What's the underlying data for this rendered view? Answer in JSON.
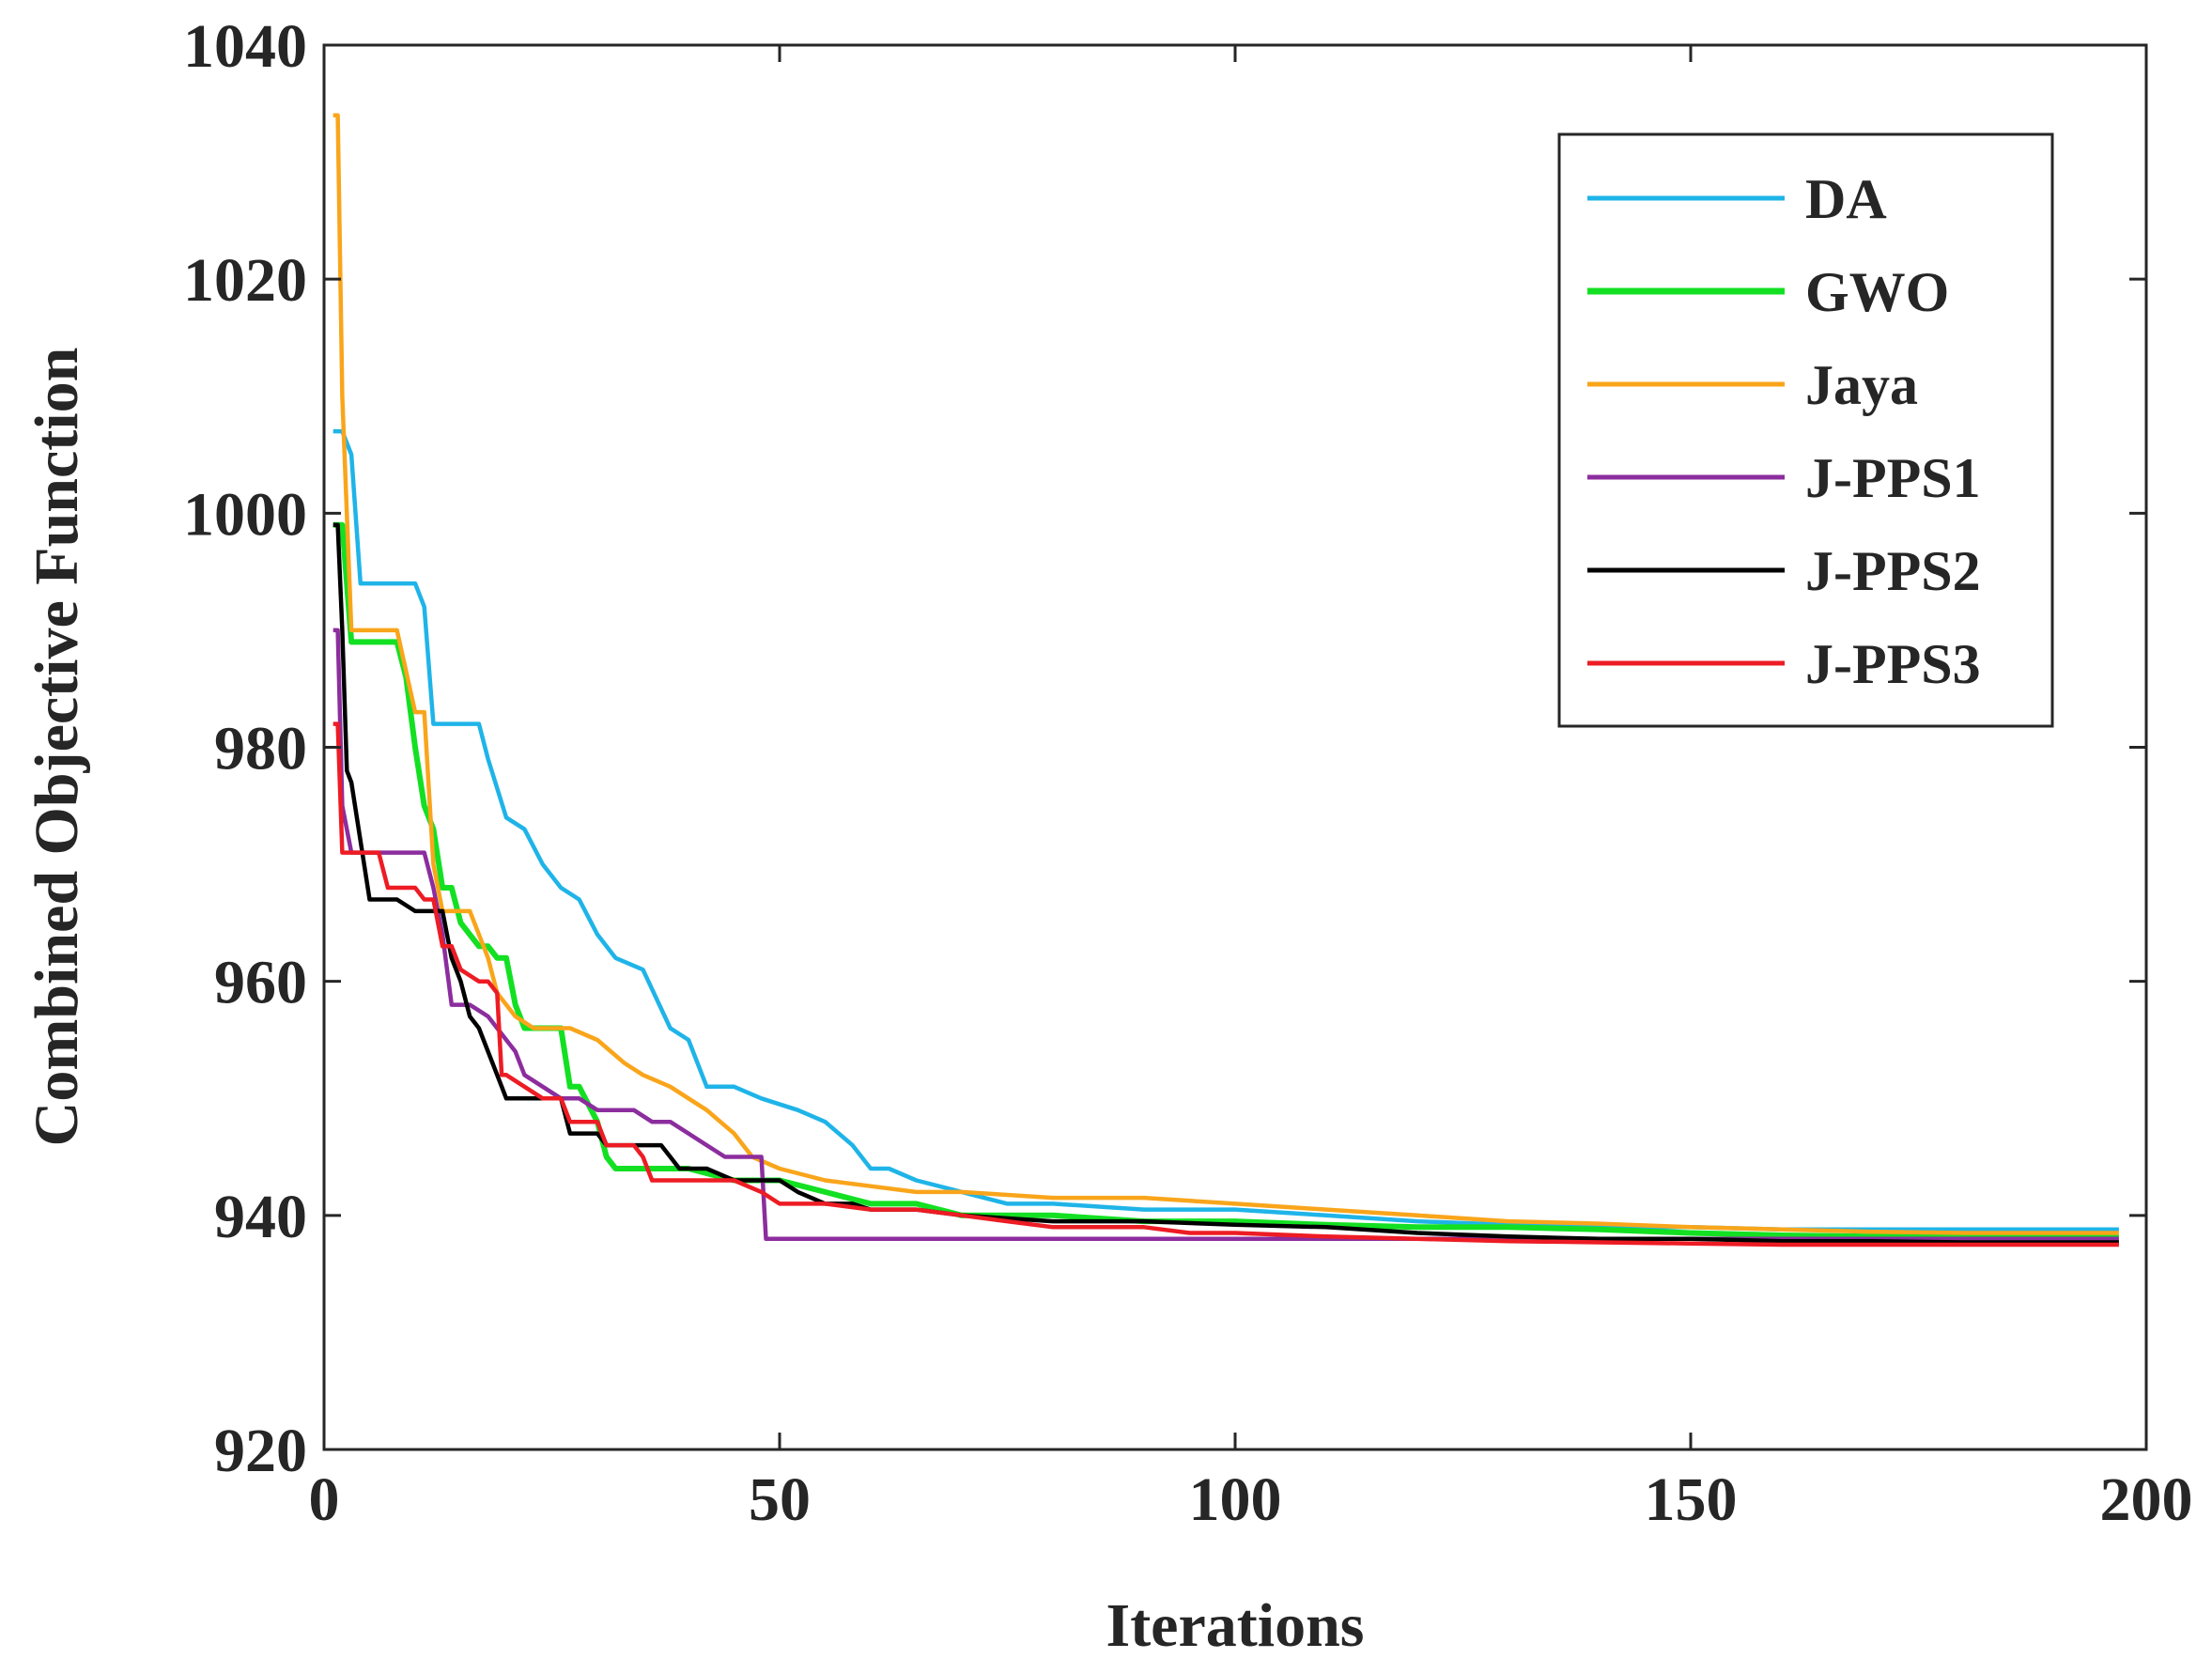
{
  "chart_data": {
    "type": "line",
    "title": "",
    "xlabel": "Iterations",
    "ylabel": "Combined Objective Function",
    "xlim": [
      0,
      200
    ],
    "ylim": [
      920,
      1040
    ],
    "xticks": [
      0,
      50,
      100,
      150,
      200
    ],
    "yticks": [
      920,
      940,
      960,
      980,
      1000,
      1020,
      1040
    ],
    "xtick_labels": [
      "0",
      "50",
      "100",
      "150",
      "200"
    ],
    "ytick_labels": [
      "920",
      "940",
      "960",
      "980",
      "1000",
      "1020",
      "1040"
    ],
    "grid": false,
    "legend_position": "top-right",
    "series": [
      {
        "name": "DA",
        "color": "#1fb4e8",
        "x": [
          1,
          2,
          3,
          4,
          6,
          10,
          11,
          12,
          13,
          17,
          18,
          20,
          22,
          24,
          26,
          28,
          30,
          32,
          35,
          38,
          40,
          42,
          45,
          48,
          52,
          55,
          58,
          60,
          62,
          65,
          70,
          75,
          80,
          90,
          100,
          110,
          120,
          130,
          140,
          150,
          160,
          170,
          180,
          190,
          197
        ],
        "y": [
          1007,
          1007,
          1005,
          994,
          994,
          994,
          992,
          982,
          982,
          982,
          979,
          974,
          973,
          970,
          968,
          967,
          964,
          962,
          961,
          956,
          955,
          951,
          951,
          950,
          949,
          948,
          946,
          944,
          944,
          943,
          942,
          941,
          941,
          940.5,
          940.5,
          940,
          939.5,
          939.2,
          939,
          939,
          938.8,
          938.8,
          938.8,
          938.8,
          938.8
        ]
      },
      {
        "name": "GWO",
        "color": "#13e022",
        "x": [
          1,
          2,
          3,
          5,
          8,
          9,
          10,
          11,
          12,
          13,
          14,
          15,
          17,
          18,
          19,
          20,
          21,
          22,
          24,
          26,
          27,
          28,
          30,
          31,
          32,
          33,
          35,
          40,
          45,
          50,
          55,
          60,
          65,
          70,
          80,
          90,
          100,
          110,
          120,
          130,
          140,
          150,
          160,
          170,
          180,
          190,
          197
        ],
        "y": [
          999,
          999,
          989,
          989,
          989,
          986,
          980,
          975,
          973,
          968,
          968,
          965,
          963,
          963,
          962,
          962,
          958,
          956,
          956,
          956,
          951,
          951,
          948,
          945,
          944,
          944,
          944,
          944,
          943,
          943,
          942,
          941,
          941,
          940,
          940,
          939.5,
          939.5,
          939.2,
          939,
          939,
          938.8,
          938.5,
          938.3,
          938.2,
          938.2,
          938.2,
          938.2
        ]
      },
      {
        "name": "Jaya",
        "color": "#f9a51b",
        "x": [
          1,
          1.5,
          2,
          3,
          4,
          5,
          7,
          8,
          10,
          11,
          12,
          13,
          16,
          17,
          18,
          19,
          20,
          21,
          23,
          25,
          27,
          30,
          33,
          35,
          38,
          40,
          42,
          45,
          47,
          50,
          55,
          60,
          65,
          70,
          80,
          90,
          100,
          110,
          120,
          130,
          140,
          150,
          160,
          170,
          180,
          190,
          197
        ],
        "y": [
          1034,
          1034,
          1010,
          990,
          990,
          990,
          990,
          990,
          983,
          983,
          970,
          966,
          966,
          964,
          962,
          959,
          958,
          957,
          956,
          956,
          956,
          955,
          953,
          952,
          951,
          950,
          949,
          947,
          945,
          944,
          943,
          942.5,
          942,
          942,
          941.5,
          941.5,
          941,
          940.5,
          940,
          939.5,
          939.3,
          939,
          938.8,
          938.6,
          938.5,
          938.5,
          938.5
        ]
      },
      {
        "name": "J-PPS1",
        "color": "#8c2d9e",
        "x": [
          1,
          1.5,
          2,
          3,
          5,
          7,
          8,
          10,
          11,
          12,
          13,
          14,
          16,
          18,
          20,
          21,
          22,
          24,
          26,
          28,
          30,
          32,
          34,
          36,
          38,
          40,
          42,
          44,
          46,
          48,
          48.5,
          50,
          60,
          70,
          80,
          90,
          100,
          120,
          140,
          160,
          180,
          197
        ],
        "y": [
          990,
          990,
          975,
          971,
          971,
          971,
          971,
          971,
          971,
          968,
          964,
          958,
          958,
          957,
          955,
          954,
          952,
          951,
          950,
          950,
          949,
          949,
          949,
          948,
          948,
          947,
          946,
          945,
          945,
          945,
          938,
          938,
          938,
          938,
          938,
          938,
          938,
          938,
          938,
          938,
          938,
          938
        ]
      },
      {
        "name": "J-PPS2",
        "color": "#000000",
        "x": [
          1,
          1.5,
          2,
          2.5,
          3,
          4,
          5,
          6,
          8,
          10,
          12,
          13,
          14,
          15,
          16,
          17,
          18,
          19,
          20,
          22,
          24,
          26,
          27,
          30,
          31,
          35,
          37,
          38,
          39,
          42,
          45,
          47,
          50,
          52,
          55,
          58,
          60,
          65,
          70,
          80,
          90,
          100,
          110,
          120,
          130,
          140,
          150,
          160,
          170,
          180,
          190,
          197
        ],
        "y": [
          999,
          999,
          990,
          978,
          977,
          972,
          967,
          967,
          967,
          966,
          966,
          966,
          962,
          960,
          957,
          956,
          954,
          952,
          950,
          950,
          950,
          950,
          947,
          947,
          946,
          946,
          946,
          945,
          944,
          944,
          943,
          943,
          943,
          942,
          941,
          941,
          940.5,
          940.5,
          940,
          939.5,
          939.5,
          939.2,
          939,
          938.5,
          938.2,
          938,
          938,
          937.8,
          937.8,
          937.7,
          937.7,
          937.7
        ]
      },
      {
        "name": "J-PPS3",
        "color": "#ed1c24",
        "x": [
          1,
          1.5,
          2,
          3,
          4,
          6,
          7,
          8,
          10,
          11,
          12,
          13,
          14,
          15,
          17,
          18,
          19,
          19.5,
          20,
          24,
          26,
          27,
          28,
          30,
          31,
          34,
          35,
          36,
          40,
          45,
          48,
          50,
          55,
          60,
          65,
          70,
          75,
          80,
          90,
          95,
          100,
          110,
          120,
          130,
          140,
          150,
          160,
          170,
          180,
          190,
          197
        ],
        "y": [
          982,
          982,
          971,
          971,
          971,
          971,
          968,
          968,
          968,
          967,
          967,
          963,
          963,
          961,
          960,
          960,
          959,
          952,
          952,
          950,
          950,
          948,
          948,
          948,
          946,
          946,
          945,
          943,
          943,
          943,
          942,
          941,
          941,
          940.5,
          940.5,
          940,
          939.5,
          939,
          939,
          938.5,
          938.5,
          938.2,
          938,
          937.8,
          937.7,
          937.6,
          937.5,
          937.5,
          937.5,
          937.5,
          937.5
        ]
      }
    ]
  }
}
